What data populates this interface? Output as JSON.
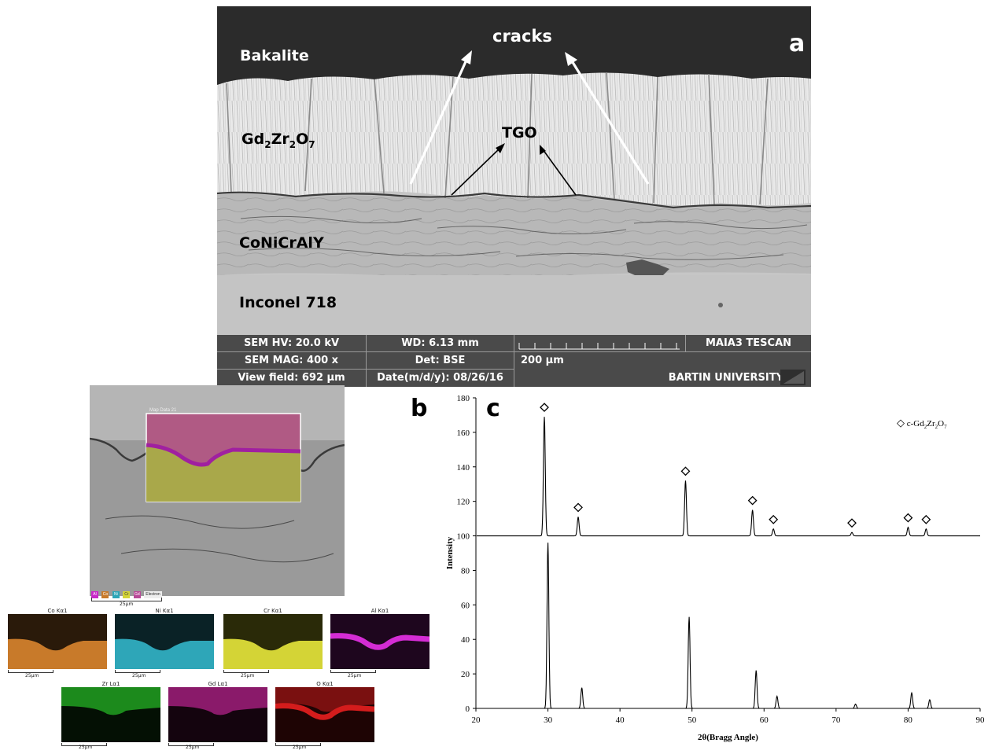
{
  "panel_a": {
    "letter": "a",
    "labels": {
      "bakalite": "Bakalite",
      "cracks": "cracks",
      "gzo_main": "Gd",
      "gzo_sub1": "2",
      "gzo_mid": "Zr",
      "gzo_sub2": "2",
      "gzo_o": "O",
      "gzo_sub3": "7",
      "tgo": "TGO",
      "bondcoat": "CoNiCrAlY",
      "substrate": "Inconel 718"
    },
    "info": {
      "hv": "SEM HV: 20.0 kV",
      "mag": "SEM MAG: 400 x",
      "field": "View field: 692 μm",
      "wd": "WD: 6.13 mm",
      "det": "Det: BSE",
      "date": "Date(m/d/y): 08/26/16",
      "scale": "200 μm",
      "brand": "MAIA3 TESCAN",
      "univ": "BARTIN UNIVERSITY"
    },
    "colors": {
      "resin": "#2b2b2b",
      "topcoat": "#e8e8e8",
      "bondcoat": "#b6b6b6",
      "substrate": "#c4c4c4"
    }
  },
  "panel_b": {
    "letter": "b",
    "map_title": "Map Data 21",
    "legend": [
      "Al",
      "Co",
      "Ni",
      "Cr",
      "Gd",
      "Electron"
    ],
    "main_scale": "25μm",
    "maps": [
      {
        "title": "Co Kα1",
        "scale": "25μm",
        "color": "#c87a2a"
      },
      {
        "title": "Ni Kα1",
        "scale": "25μm",
        "color": "#2ea6b8"
      },
      {
        "title": "Cr Kα1",
        "scale": "25μm",
        "color": "#d4d436"
      },
      {
        "title": "Al Kα1",
        "scale": "25μm",
        "color": "#d42cd4"
      },
      {
        "title": "Zr Lα1",
        "scale": "25μm",
        "color": "#1c8a1c"
      },
      {
        "title": "Gd Lα1",
        "scale": "25μm",
        "color": "#8a1a6a"
      },
      {
        "title": "O Kα1",
        "scale": "25μm",
        "color": "#d41c1c"
      }
    ]
  },
  "panel_c": {
    "letter": "c",
    "legend_symbol": "◇",
    "legend_text_main": "c-Gd",
    "legend_sub1": "2",
    "legend_mid": "Zr",
    "legend_sub2": "2",
    "legend_o": "O",
    "legend_sub3": "7"
  },
  "chart_data": {
    "type": "line",
    "xlabel": "2θ(Bragg Angle)",
    "ylabel": "Intensity",
    "xlim": [
      20,
      90
    ],
    "ylim": [
      0,
      180
    ],
    "xticks": [
      20,
      30,
      40,
      50,
      60,
      70,
      80,
      90
    ],
    "yticks": [
      0,
      20,
      40,
      60,
      80,
      100,
      120,
      140,
      160,
      180
    ],
    "grid": false,
    "legend": "top-right",
    "series": [
      {
        "name": "c-Gd2Zr2O7",
        "baseline": 100,
        "peaks": [
          {
            "x": 29.5,
            "y": 169
          },
          {
            "x": 34.2,
            "y": 111
          },
          {
            "x": 49.1,
            "y": 132
          },
          {
            "x": 58.4,
            "y": 115
          },
          {
            "x": 61.3,
            "y": 104
          },
          {
            "x": 72.2,
            "y": 102
          },
          {
            "x": 80.0,
            "y": 105
          },
          {
            "x": 82.5,
            "y": 104
          }
        ],
        "markers_x": [
          29.5,
          34.2,
          49.1,
          58.4,
          61.3,
          72.2,
          80.0,
          82.5
        ]
      },
      {
        "name": "",
        "baseline": 0,
        "peaks": [
          {
            "x": 30.0,
            "y": 96
          },
          {
            "x": 34.7,
            "y": 12
          },
          {
            "x": 49.6,
            "y": 53
          },
          {
            "x": 58.9,
            "y": 22
          },
          {
            "x": 61.8,
            "y": 7
          },
          {
            "x": 72.7,
            "y": 2.5
          },
          {
            "x": 80.5,
            "y": 9
          },
          {
            "x": 83.0,
            "y": 5
          }
        ]
      }
    ]
  }
}
